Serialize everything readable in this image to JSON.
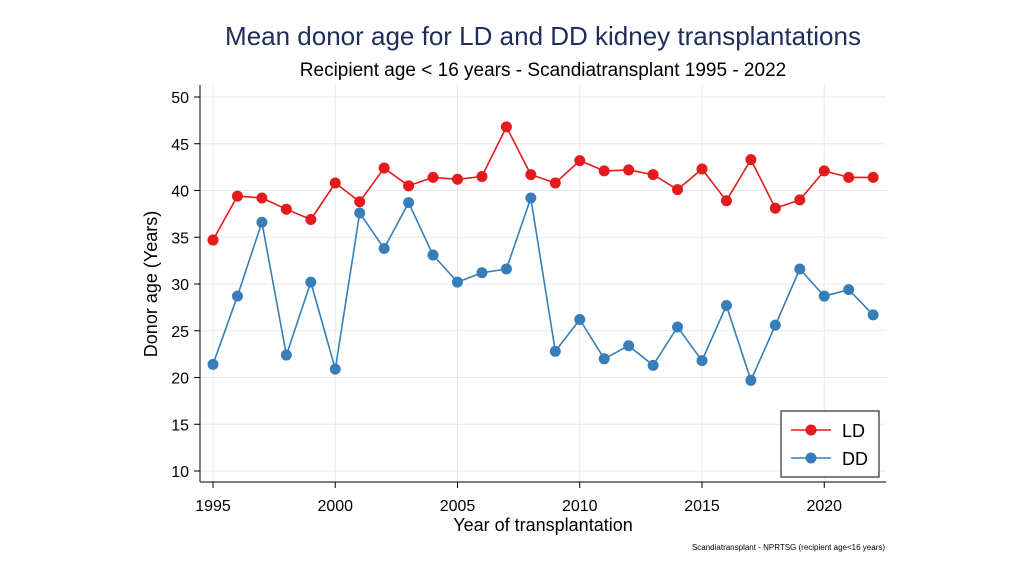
{
  "chart_data": {
    "type": "line",
    "title": "Mean donor age for LD and DD kidney transplantations",
    "subtitle": "Recipient age < 16 years - Scandiatransplant 1995 - 2022",
    "xlabel": "Year of transplantation",
    "ylabel": "Donor age (Years)",
    "note": "Scandiatransplant - NPRTSG (recipient age<16 years)",
    "xlim": [
      1995,
      2022
    ],
    "ylim": [
      10,
      50
    ],
    "xticks": [
      1995,
      2000,
      2005,
      2010,
      2015,
      2020
    ],
    "yticks": [
      10,
      15,
      20,
      25,
      30,
      35,
      40,
      45,
      50
    ],
    "grid": true,
    "legend_position": "bottom-right",
    "x": [
      1995,
      1996,
      1997,
      1998,
      1999,
      2000,
      2001,
      2002,
      2003,
      2004,
      2005,
      2006,
      2007,
      2008,
      2009,
      2010,
      2011,
      2012,
      2013,
      2014,
      2015,
      2016,
      2017,
      2018,
      2019,
      2020,
      2021,
      2022
    ],
    "series": [
      {
        "name": "LD",
        "color": "#e41a1c",
        "values": [
          34.7,
          39.4,
          39.2,
          38.0,
          36.9,
          40.8,
          38.8,
          42.4,
          40.5,
          41.4,
          41.2,
          41.5,
          46.8,
          41.7,
          40.8,
          43.2,
          42.1,
          42.2,
          41.7,
          40.1,
          42.3,
          38.9,
          43.3,
          38.1,
          39.0,
          42.1,
          41.4,
          41.4
        ]
      },
      {
        "name": "DD",
        "color": "#377eb8",
        "values": [
          21.4,
          28.7,
          36.6,
          22.4,
          30.2,
          20.9,
          37.6,
          33.8,
          38.7,
          33.1,
          30.2,
          31.2,
          31.6,
          39.2,
          22.8,
          26.2,
          22.0,
          23.4,
          21.3,
          25.4,
          21.8,
          27.7,
          19.7,
          25.6,
          31.6,
          28.7,
          29.4,
          26.7
        ]
      }
    ]
  }
}
